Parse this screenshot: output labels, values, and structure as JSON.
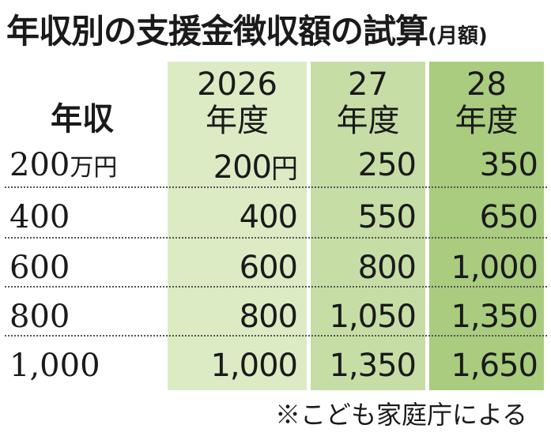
{
  "title": {
    "main": "年収別の支援金徴収額の試算",
    "sub": "(月額)"
  },
  "chart_data": {
    "type": "table",
    "row_header": "年収",
    "columns": [
      {
        "line1": "2026",
        "line2": "年度"
      },
      {
        "line1": "27",
        "line2": "年度"
      },
      {
        "line1": "28",
        "line2": "年度"
      }
    ],
    "rows": [
      {
        "income": "200",
        "income_unit": "万円",
        "values": [
          "200",
          "250",
          "350"
        ],
        "value_unit": "円"
      },
      {
        "income": "400",
        "income_unit": "",
        "values": [
          "400",
          "550",
          "650"
        ],
        "value_unit": ""
      },
      {
        "income": "600",
        "income_unit": "",
        "values": [
          "600",
          "800",
          "1,000"
        ],
        "value_unit": ""
      },
      {
        "income": "800",
        "income_unit": "",
        "values": [
          "800",
          "1,050",
          "1,350"
        ],
        "value_unit": ""
      },
      {
        "income": "1,000",
        "income_unit": "",
        "values": [
          "1,000",
          "1,350",
          "1,650"
        ],
        "value_unit": ""
      }
    ]
  },
  "note": "※こども家庭庁による",
  "colors": {
    "col0_bg": "#dcebc4",
    "col1_bg": "#c6dea6",
    "col2_bg": "#a9cc7f"
  }
}
